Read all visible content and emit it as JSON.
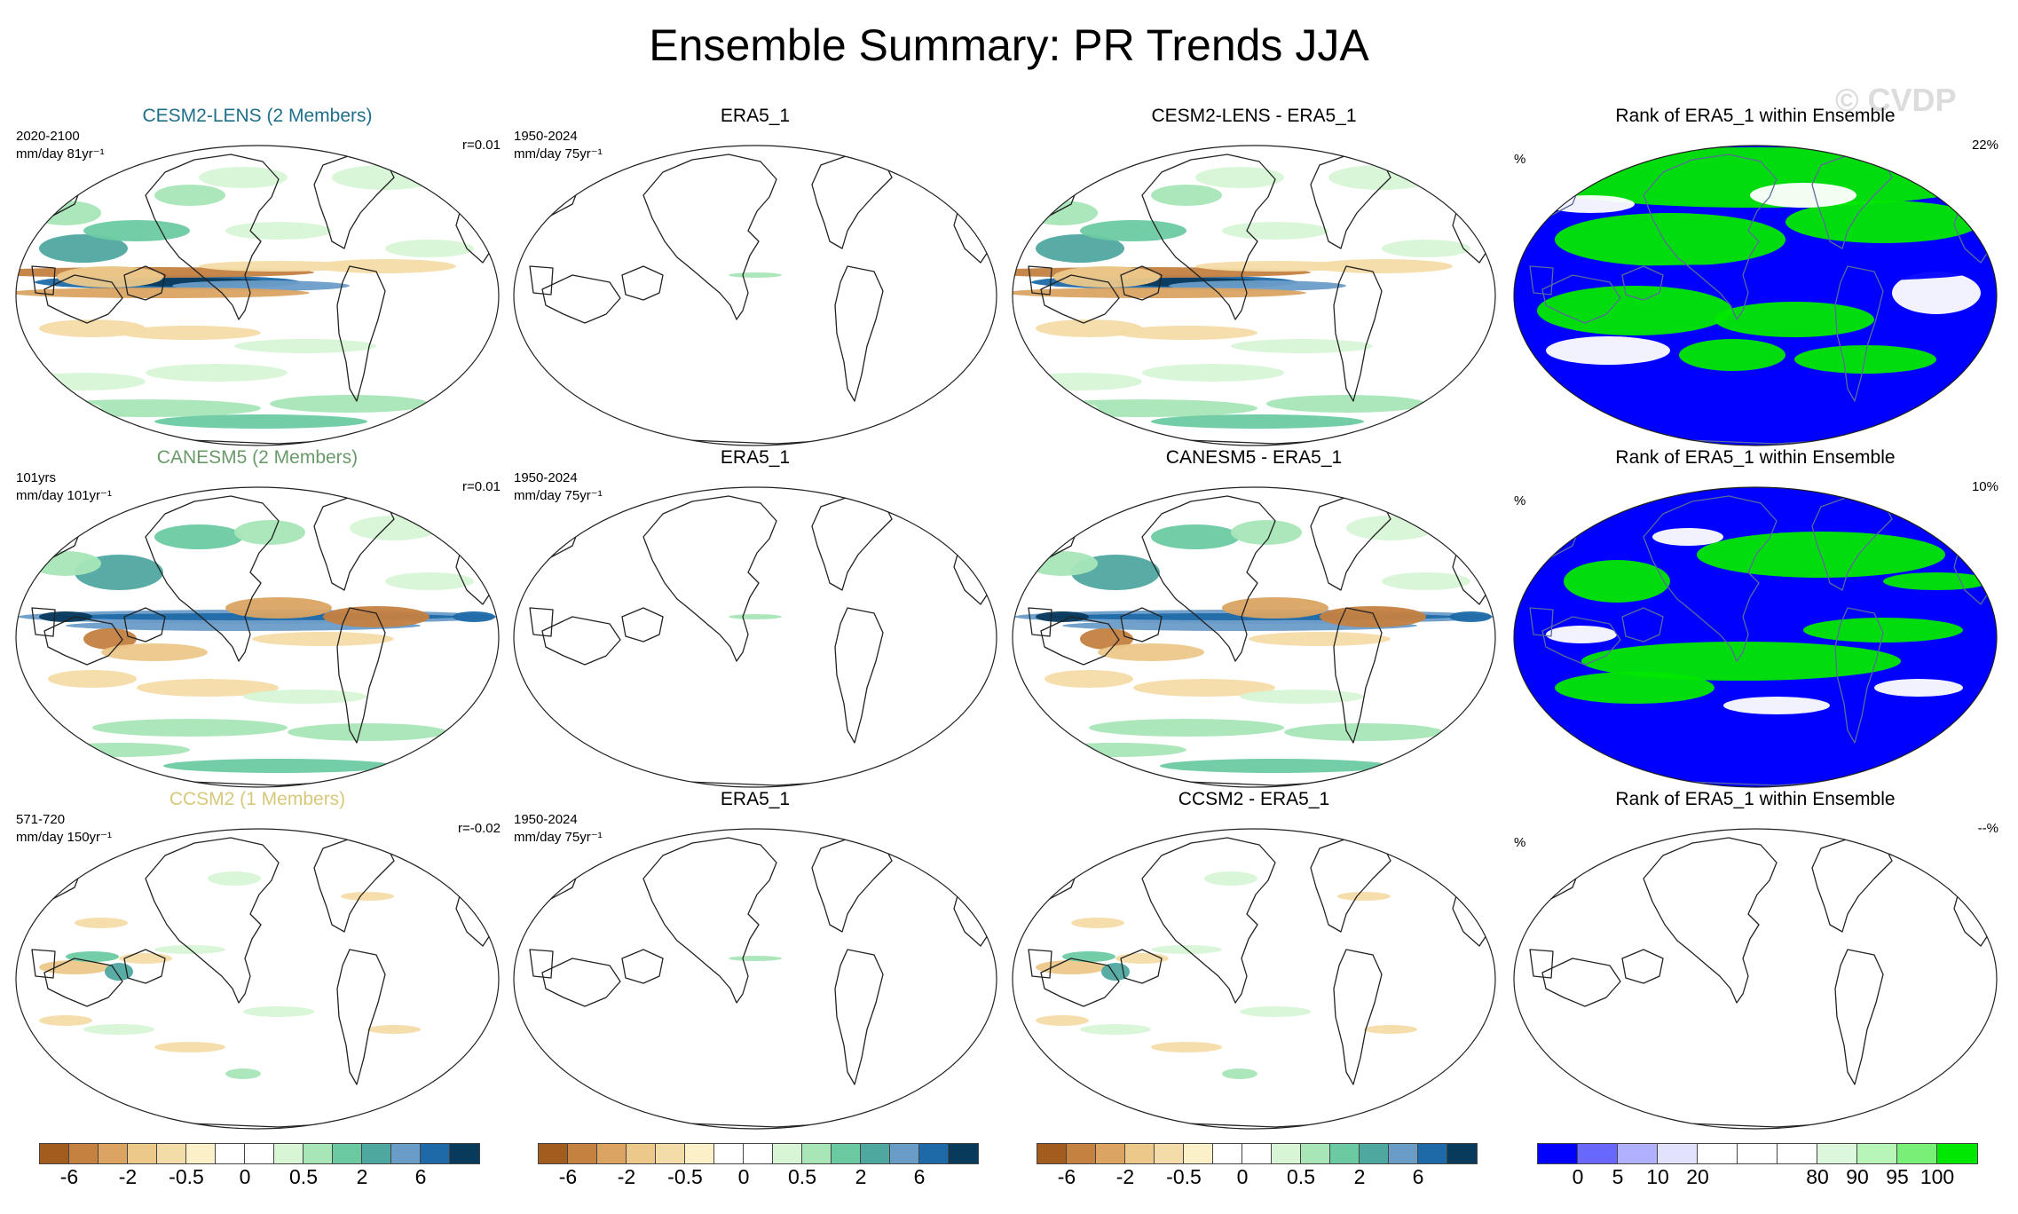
{
  "title": "Ensemble Summary: PR Trends JJA",
  "watermark": "© CVDP",
  "rows": [
    {
      "model": {
        "title": "CESM2-LENS (2 Members)",
        "title_color": "#1f6f8b",
        "years": "2020-2100",
        "units": "mm/day 81yr⁻¹",
        "corr": "r=0.01",
        "pattern": "enso-strong"
      },
      "obs": {
        "title": "ERA5_1",
        "years": "1950-2024",
        "units": "mm/day 75yr⁻¹"
      },
      "diff": {
        "title": "CESM2-LENS - ERA5_1",
        "pattern": "enso-strong"
      },
      "rank": {
        "title": "Rank of ERA5_1 within Ensemble",
        "units": "%",
        "pct": "22%",
        "pattern": "rank-a"
      }
    },
    {
      "model": {
        "title": "CANESM5 (2 Members)",
        "title_color": "#6a9a6a",
        "years": "101yrs",
        "units": "mm/day 101yr⁻¹",
        "corr": "r=0.01",
        "pattern": "itcz"
      },
      "obs": {
        "title": "ERA5_1",
        "years": "1950-2024",
        "units": "mm/day 75yr⁻¹"
      },
      "diff": {
        "title": "CANESM5 - ERA5_1",
        "pattern": "itcz"
      },
      "rank": {
        "title": "Rank of ERA5_1 within Ensemble",
        "units": "%",
        "pct": "10%",
        "pattern": "rank-b"
      }
    },
    {
      "model": {
        "title": "CCSM2 (1 Members)",
        "title_color": "#d8c87a",
        "years": "571-720",
        "units": "mm/day 150yr⁻¹",
        "corr": "r=-0.02",
        "pattern": "weak"
      },
      "obs": {
        "title": "ERA5_1",
        "years": "1950-2024",
        "units": "mm/day 75yr⁻¹"
      },
      "diff": {
        "title": "CCSM2 - ERA5_1",
        "pattern": "weak"
      },
      "rank": {
        "title": "Rank of ERA5_1 within Ensemble",
        "units": "%",
        "pct": "--%",
        "pattern": "blank"
      }
    }
  ],
  "trend_colorbar": {
    "colors": [
      "#a25c1e",
      "#c58140",
      "#dba462",
      "#ecc88a",
      "#f4dca8",
      "#fbf0c8",
      "#ffffff",
      "#ffffff",
      "#d8f5d6",
      "#a8e6b8",
      "#6ccaa2",
      "#4fa8a0",
      "#6a9cc8",
      "#1e6aa8",
      "#083a5c"
    ],
    "ticks": [
      {
        "label": "-6",
        "after": 1
      },
      {
        "label": "-2",
        "after": 3
      },
      {
        "label": "-0.5",
        "after": 5
      },
      {
        "label": "0",
        "after": 7
      },
      {
        "label": "0.5",
        "after": 9
      },
      {
        "label": "2",
        "after": 11
      },
      {
        "label": "6",
        "after": 13
      }
    ]
  },
  "rank_colorbar": {
    "colors": [
      "#0000ff",
      "#6868ff",
      "#b0b0ff",
      "#e2e2ff",
      "#ffffff",
      "#ffffff",
      "#ffffff",
      "#dcf7dc",
      "#b8f5b8",
      "#78f078",
      "#00e800"
    ],
    "ticks": [
      {
        "label": "0",
        "after": 1
      },
      {
        "label": "5",
        "after": 2
      },
      {
        "label": "10",
        "after": 3
      },
      {
        "label": "20",
        "after": 4
      },
      {
        "label": "80",
        "after": 7
      },
      {
        "label": "90",
        "after": 8
      },
      {
        "label": "95",
        "after": 9
      },
      {
        "label": "100",
        "after": 10
      }
    ]
  }
}
